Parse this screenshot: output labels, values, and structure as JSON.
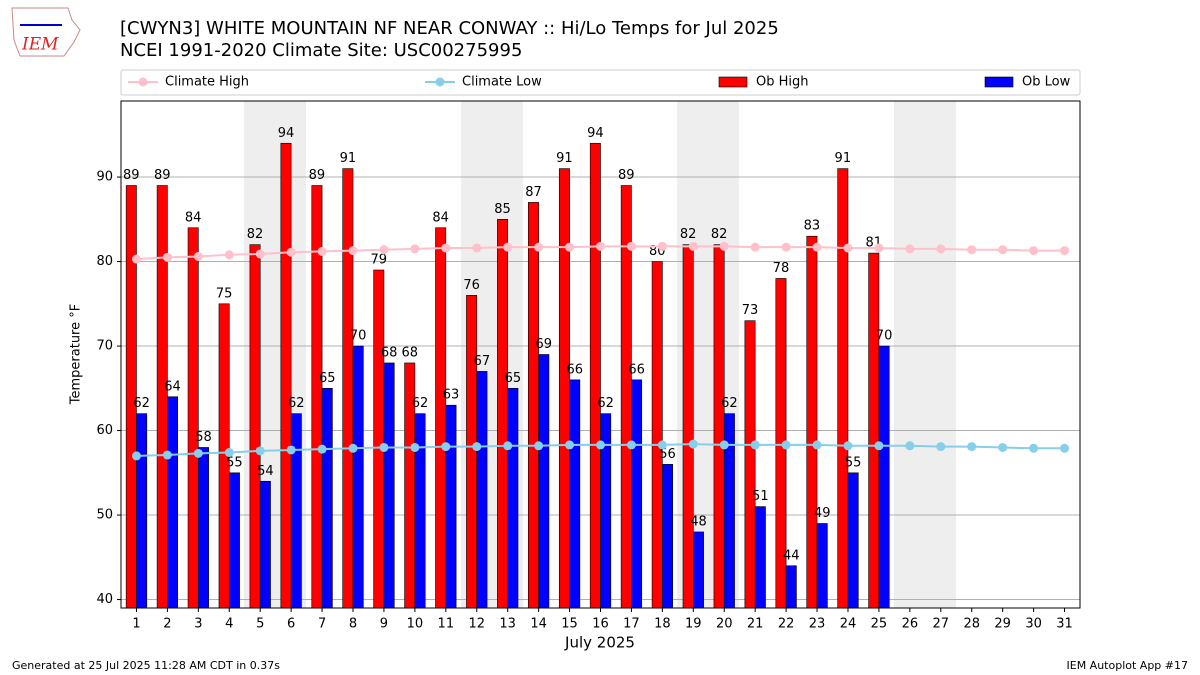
{
  "chart_data": {
    "type": "bar",
    "title": "[CWYN3] WHITE MOUNTAIN NF NEAR CONWAY :: Hi/Lo Temps for Jul 2025",
    "subtitle": "NCEI 1991-2020 Climate Site: USC00275995",
    "ylabel": "Temperature °F",
    "xlabel": "July 2025",
    "logo_text": "IEM",
    "footer_left": "Generated at 25 Jul 2025 11:28 AM CDT in 0.37s",
    "footer_right": "IEM Autoplot App #17",
    "x": [
      1,
      2,
      3,
      4,
      5,
      6,
      7,
      8,
      9,
      10,
      11,
      12,
      13,
      14,
      15,
      16,
      17,
      18,
      19,
      20,
      21,
      22,
      23,
      24,
      25,
      26,
      27,
      28,
      29,
      30,
      31
    ],
    "xlim": [
      0.5,
      31.5
    ],
    "xticks": [
      1,
      2,
      3,
      4,
      5,
      6,
      7,
      8,
      9,
      10,
      11,
      12,
      13,
      14,
      15,
      16,
      17,
      18,
      19,
      20,
      21,
      22,
      23,
      24,
      25,
      26,
      27,
      28,
      29,
      30,
      31
    ],
    "ylim": [
      39,
      99
    ],
    "yticks": [
      40,
      50,
      60,
      70,
      80,
      90
    ],
    "grid": true,
    "series": [
      {
        "name": "Climate High",
        "type": "line",
        "color": "#ffc0cb",
        "values": [
          80.3,
          80.5,
          80.6,
          80.8,
          80.9,
          81.1,
          81.2,
          81.3,
          81.4,
          81.5,
          81.6,
          81.6,
          81.7,
          81.7,
          81.7,
          81.8,
          81.8,
          81.8,
          81.8,
          81.8,
          81.7,
          81.7,
          81.7,
          81.6,
          81.6,
          81.5,
          81.5,
          81.4,
          81.4,
          81.3,
          81.3
        ]
      },
      {
        "name": "Climate Low",
        "type": "line",
        "color": "#87ceeb",
        "values": [
          57.0,
          57.1,
          57.3,
          57.4,
          57.6,
          57.7,
          57.8,
          57.9,
          58.0,
          58.0,
          58.1,
          58.1,
          58.2,
          58.2,
          58.3,
          58.3,
          58.3,
          58.3,
          58.4,
          58.3,
          58.3,
          58.3,
          58.3,
          58.2,
          58.2,
          58.2,
          58.1,
          58.1,
          58.0,
          57.9,
          57.9
        ]
      },
      {
        "name": "Ob High",
        "type": "bar",
        "color": "#ff0000",
        "values": [
          89,
          89,
          84,
          75,
          82,
          94,
          89,
          91,
          79,
          68,
          84,
          76,
          85,
          87,
          91,
          94,
          89,
          80,
          82,
          82,
          73,
          78,
          83,
          91,
          81,
          null,
          null,
          null,
          null,
          null,
          null
        ]
      },
      {
        "name": "Ob Low",
        "type": "bar",
        "color": "#0000ff",
        "values": [
          62,
          64,
          58,
          55,
          54,
          62,
          65,
          70,
          68,
          62,
          63,
          67,
          65,
          69,
          66,
          62,
          66,
          56,
          48,
          62,
          51,
          44,
          49,
          55,
          70,
          null,
          null,
          null,
          null,
          null,
          null
        ]
      }
    ]
  }
}
